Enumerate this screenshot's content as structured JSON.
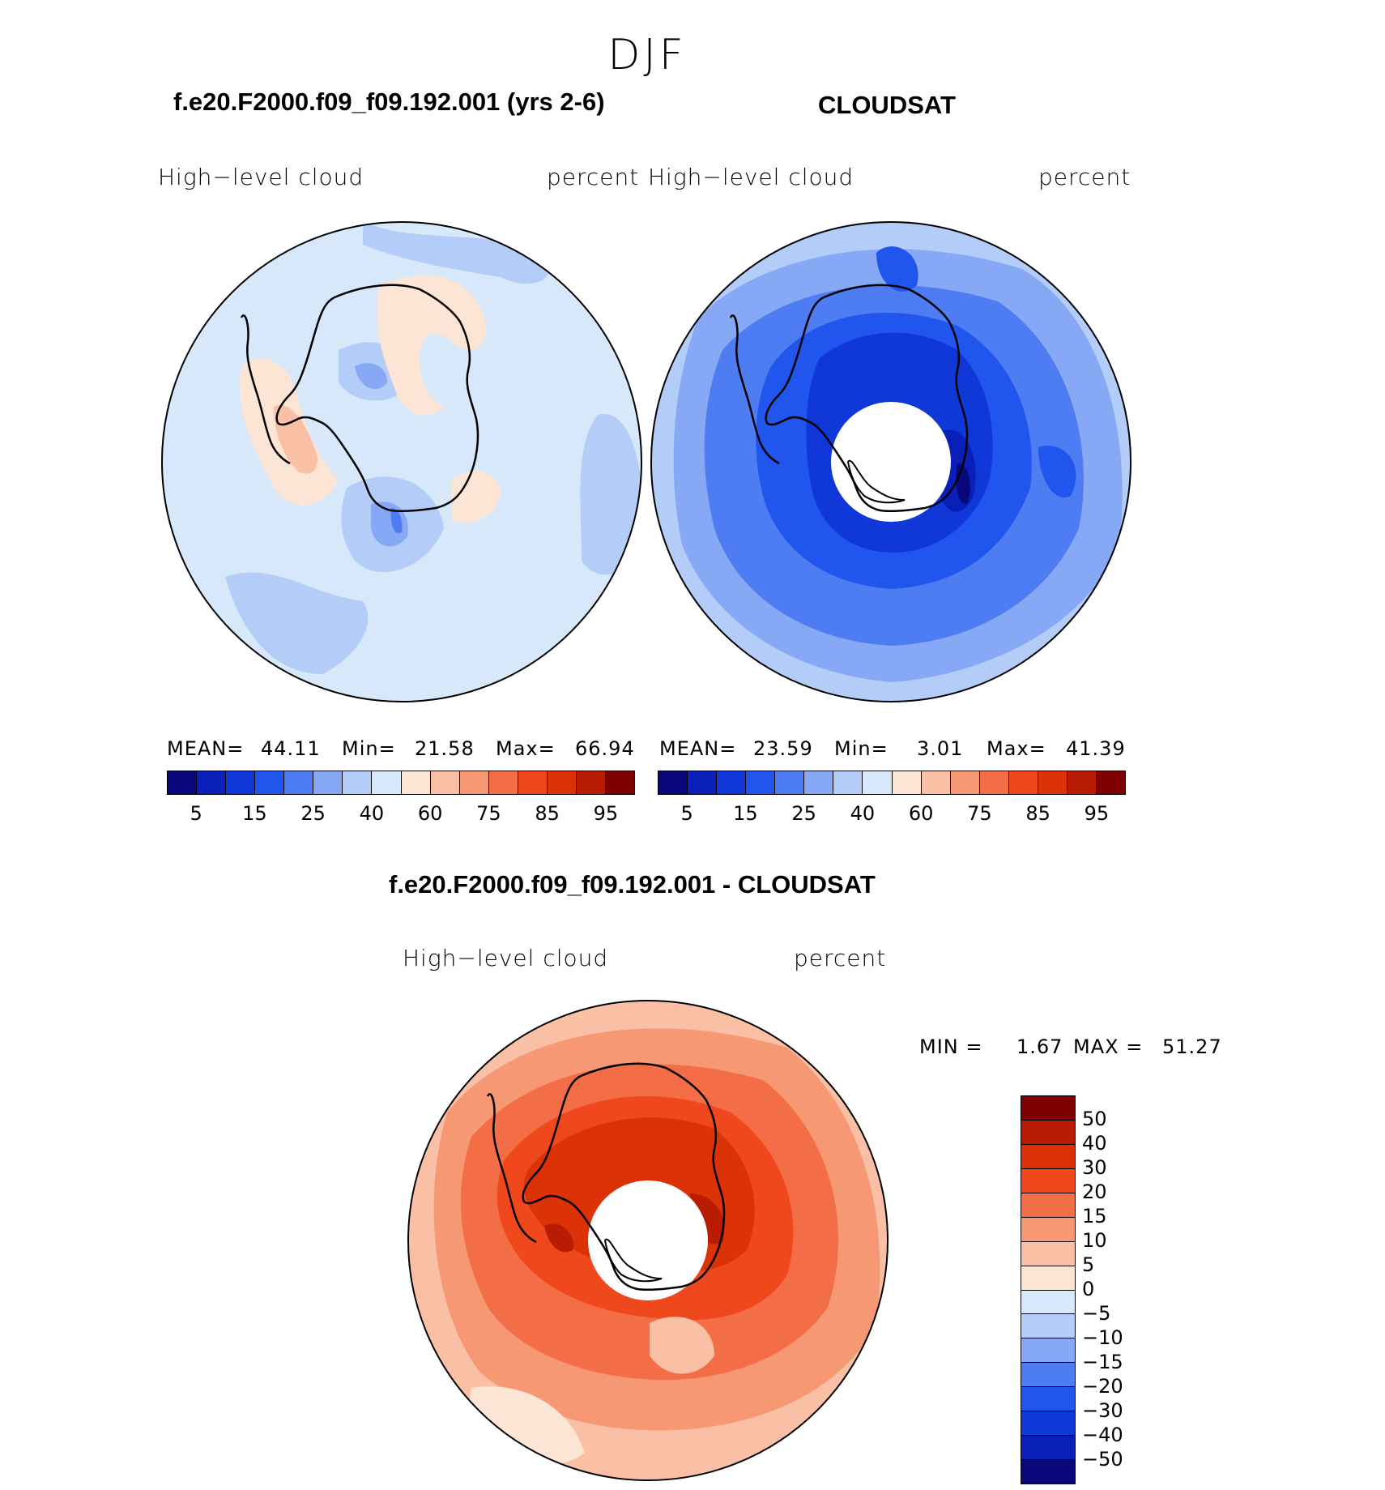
{
  "title": "DJF",
  "panels": [
    {
      "title": "f.e20.F2000.f09_f09.192.001 (yrs 2-6)",
      "variable": "High−level cloud",
      "units": "percent",
      "stats": {
        "mean_label": "MEAN=",
        "mean": "44.11",
        "min_label": "Min=",
        "min": "21.58",
        "max_label": "Max=",
        "max": "66.94"
      }
    },
    {
      "title": "CLOUDSAT",
      "variable": "High−level cloud",
      "units": "percent",
      "stats": {
        "mean_label": "MEAN=",
        "mean": "23.59",
        "min_label": "Min=",
        "min": "3.01",
        "max_label": "Max=",
        "max": "41.39"
      }
    }
  ],
  "abs_colorbar": {
    "colors": [
      "#08087a",
      "#0a1eb8",
      "#1038d8",
      "#2055ee",
      "#4e7cf2",
      "#87a8f5",
      "#b3ccf8",
      "#d8e8fb",
      "#fde5d6",
      "#f9c0a5",
      "#f69873",
      "#f36e46",
      "#f0481d",
      "#dc3208",
      "#b81c03",
      "#7f0000"
    ],
    "tick_labels": [
      "5",
      "15",
      "25",
      "40",
      "60",
      "75",
      "85",
      "95"
    ]
  },
  "diff_panel": {
    "title": "f.e20.F2000.f09_f09.192.001 - CLOUDSAT",
    "variable": "High−level cloud",
    "units": "percent",
    "stats": {
      "min_label": "MIN =",
      "min": "1.67",
      "max_label": "MAX =",
      "max": "51.27"
    }
  },
  "diff_colorbar": {
    "colors_top_to_bottom": [
      "#7f0000",
      "#b81c03",
      "#dc3208",
      "#f0481d",
      "#f36e46",
      "#f69873",
      "#f9c0a5",
      "#fde5d6",
      "#d8e8fb",
      "#b3ccf8",
      "#87a8f5",
      "#4e7cf2",
      "#2055ee",
      "#1038d8",
      "#0a1eb8",
      "#08087a"
    ],
    "tick_labels_top_to_bottom": [
      "50",
      "40",
      "30",
      "20",
      "15",
      "10",
      "5",
      "0",
      "−5",
      "−10",
      "−15",
      "−20",
      "−30",
      "−40",
      "−50"
    ]
  }
}
